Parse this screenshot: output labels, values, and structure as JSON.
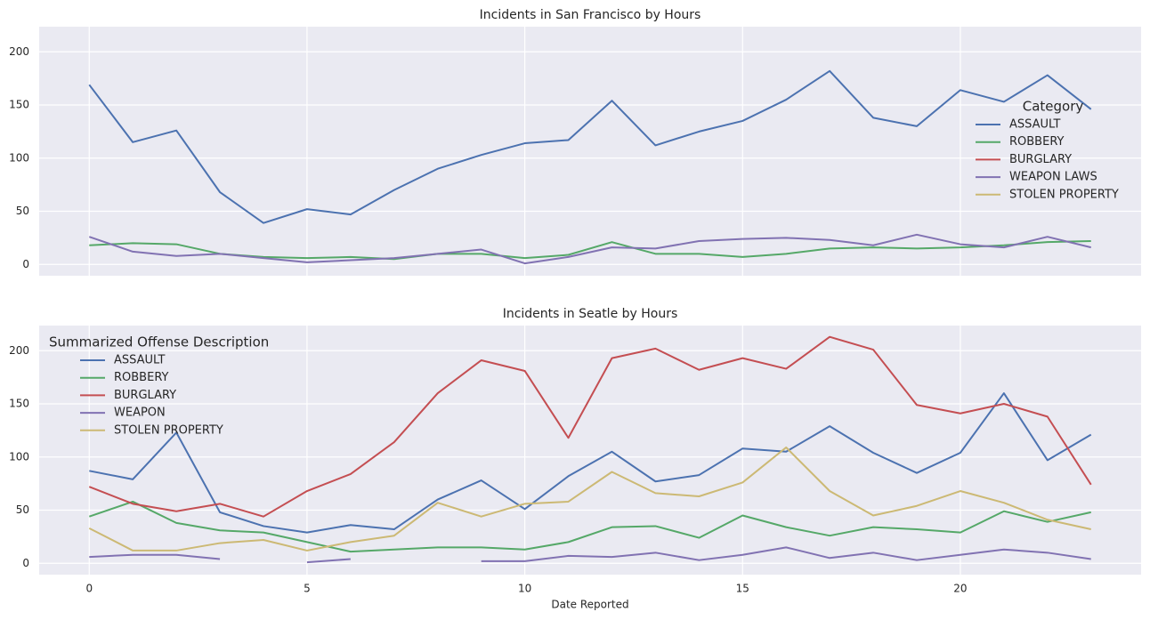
{
  "chart_data": [
    {
      "type": "line",
      "title": "Incidents in San Francisco by Hours",
      "x": [
        0,
        1,
        2,
        3,
        4,
        5,
        6,
        7,
        8,
        9,
        10,
        11,
        12,
        13,
        14,
        15,
        16,
        17,
        18,
        19,
        20,
        21,
        22,
        23
      ],
      "xlim": [
        -1.15,
        24.15
      ],
      "xticks": [
        0,
        5,
        10,
        15,
        20
      ],
      "ylim": [
        -10.65,
        223.65
      ],
      "yticks": [
        0,
        50,
        100,
        150,
        200
      ],
      "grid": true,
      "legend_title": "Category",
      "legend": "right",
      "series": [
        {
          "name": "ASSAULT",
          "color": "#4c72b0",
          "values": [
            169,
            115,
            126,
            68,
            39,
            52,
            47,
            70,
            90,
            103,
            114,
            117,
            154,
            112,
            125,
            135,
            155,
            182,
            138,
            130,
            164,
            153,
            178,
            146
          ]
        },
        {
          "name": "ROBBERY",
          "color": "#55a868",
          "values": [
            18,
            20,
            19,
            10,
            7,
            6,
            7,
            5,
            10,
            10,
            6,
            9,
            21,
            10,
            10,
            7,
            10,
            15,
            16,
            15,
            16,
            18,
            21,
            22
          ]
        },
        {
          "name": "BURGLARY",
          "color": "#c44e52",
          "values": [
            null,
            null,
            null,
            null,
            null,
            null,
            null,
            null,
            null,
            null,
            null,
            null,
            null,
            null,
            null,
            null,
            null,
            null,
            null,
            null,
            null,
            null,
            null,
            null
          ]
        },
        {
          "name": "WEAPON LAWS",
          "color": "#8172b2",
          "values": [
            26,
            12,
            8,
            10,
            6,
            2,
            4,
            6,
            10,
            14,
            1,
            7,
            16,
            15,
            22,
            24,
            25,
            23,
            18,
            28,
            19,
            16,
            26,
            16
          ]
        },
        {
          "name": "STOLEN PROPERTY",
          "color": "#ccb974",
          "values": [
            null,
            null,
            null,
            null,
            null,
            null,
            null,
            null,
            null,
            null,
            null,
            null,
            null,
            null,
            null,
            null,
            null,
            null,
            null,
            null,
            null,
            null,
            null,
            null
          ]
        }
      ]
    },
    {
      "type": "line",
      "title": "Incidents in Seatle by Hours",
      "xlabel": "Date Reported",
      "x": [
        0,
        1,
        2,
        3,
        4,
        5,
        6,
        7,
        8,
        9,
        10,
        11,
        12,
        13,
        14,
        15,
        16,
        17,
        18,
        19,
        20,
        21,
        22,
        23
      ],
      "xlim": [
        -1.15,
        24.15
      ],
      "xticks": [
        0,
        5,
        10,
        15,
        20
      ],
      "ylim": [
        -10.65,
        223.65
      ],
      "yticks": [
        0,
        50,
        100,
        150,
        200
      ],
      "grid": true,
      "legend_title": "Summarized Offense Description",
      "legend": "left",
      "series": [
        {
          "name": "ASSAULT",
          "color": "#4c72b0",
          "values": [
            87,
            79,
            123,
            48,
            35,
            29,
            36,
            32,
            60,
            78,
            51,
            82,
            105,
            77,
            83,
            108,
            105,
            129,
            104,
            85,
            104,
            160,
            97,
            121
          ]
        },
        {
          "name": "ROBBERY",
          "color": "#55a868",
          "values": [
            44,
            58,
            38,
            31,
            29,
            20,
            11,
            13,
            15,
            15,
            13,
            20,
            34,
            35,
            24,
            45,
            34,
            26,
            34,
            32,
            29,
            49,
            39,
            48
          ]
        },
        {
          "name": "BURGLARY",
          "color": "#c44e52",
          "values": [
            72,
            56,
            49,
            56,
            44,
            68,
            84,
            114,
            160,
            191,
            181,
            118,
            193,
            202,
            182,
            193,
            183,
            213,
            201,
            149,
            141,
            150,
            138,
            74
          ]
        },
        {
          "name": "WEAPON",
          "color": "#8172b2",
          "values": [
            6,
            8,
            8,
            4,
            null,
            1,
            4,
            null,
            null,
            2,
            2,
            7,
            6,
            10,
            3,
            8,
            15,
            5,
            10,
            3,
            8,
            13,
            10,
            4
          ]
        },
        {
          "name": "STOLEN PROPERTY",
          "color": "#ccb974",
          "values": [
            33,
            12,
            12,
            19,
            22,
            12,
            20,
            26,
            57,
            44,
            56,
            58,
            86,
            66,
            63,
            76,
            109,
            68,
            45,
            54,
            68,
            57,
            41,
            32
          ]
        }
      ]
    }
  ]
}
